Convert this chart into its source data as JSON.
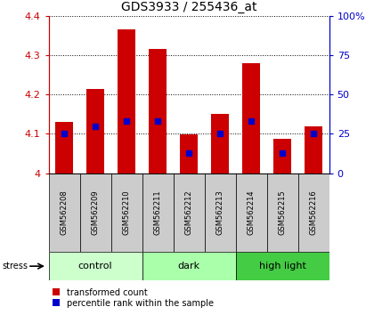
{
  "title": "GDS3933 / 255436_at",
  "samples": [
    "GSM562208",
    "GSM562209",
    "GSM562210",
    "GSM562211",
    "GSM562212",
    "GSM562213",
    "GSM562214",
    "GSM562215",
    "GSM562216"
  ],
  "transformed_counts": [
    4.13,
    4.215,
    4.365,
    4.315,
    4.098,
    4.15,
    4.28,
    4.087,
    4.12
  ],
  "percentile_ranks": [
    25,
    30,
    33,
    33,
    13,
    25,
    33,
    13,
    25
  ],
  "ylim_left": [
    4.0,
    4.4
  ],
  "ylim_right": [
    0,
    100
  ],
  "groups": [
    {
      "label": "control",
      "start": 0,
      "end": 3,
      "color": "#ccffcc"
    },
    {
      "label": "dark",
      "start": 3,
      "end": 6,
      "color": "#aaffaa"
    },
    {
      "label": "high light",
      "start": 6,
      "end": 9,
      "color": "#44cc44"
    }
  ],
  "bar_color": "#cc0000",
  "marker_color": "#0000cc",
  "left_axis_color": "#cc0000",
  "right_axis_color": "#0000cc",
  "sample_bg_color": "#cccccc",
  "stress_label": "stress",
  "legend": [
    {
      "label": "transformed count",
      "color": "#cc0000"
    },
    {
      "label": "percentile rank within the sample",
      "color": "#0000cc"
    }
  ]
}
